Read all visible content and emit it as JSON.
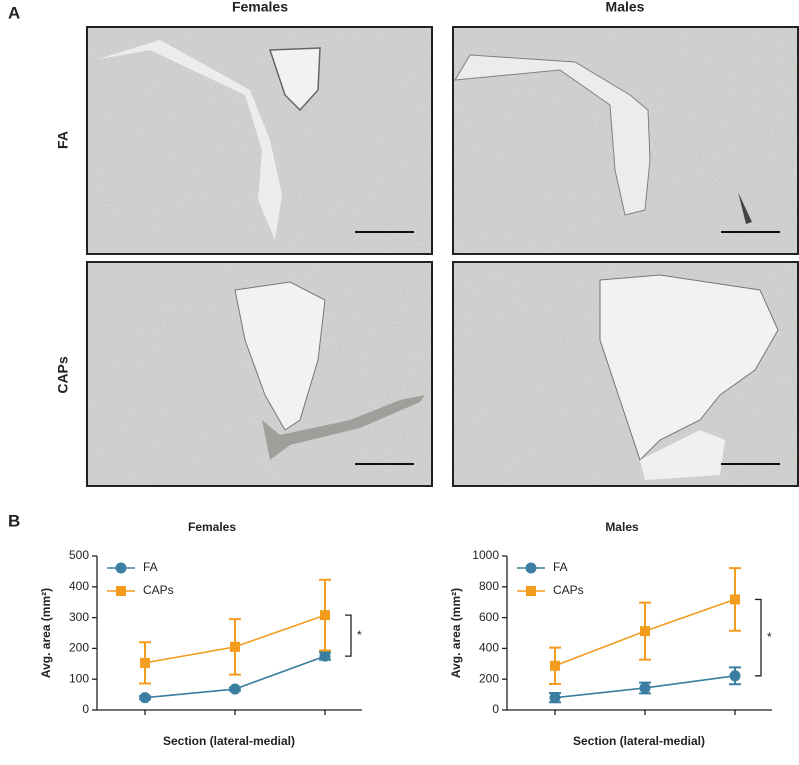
{
  "panel_labels": [
    "A",
    "B"
  ],
  "micrographs": {
    "columns": [
      "Females",
      "Males"
    ],
    "rows": [
      "FA",
      "CAPs"
    ]
  },
  "chart_data": [
    {
      "type": "line",
      "title": "Females",
      "xlabel": "Section (lateral-medial)",
      "ylabel": "Avg. area (mm²)",
      "categories": [
        null,
        null,
        null
      ],
      "series": [
        {
          "name": "FA",
          "color": "#3b7ea1",
          "marker": "circle",
          "values": [
            40,
            68,
            175
          ],
          "errors": [
            5,
            5,
            12
          ]
        },
        {
          "name": "CAPs",
          "color": "#f39c1e",
          "marker": "square",
          "values": [
            153,
            205,
            308
          ],
          "errors": [
            67,
            90,
            115
          ]
        }
      ],
      "ylim": [
        0,
        500
      ],
      "yticks": [
        0,
        100,
        200,
        300,
        400,
        500
      ],
      "legend": "upper left",
      "annotation": "*"
    },
    {
      "type": "line",
      "title": "Males",
      "xlabel": "Section (lateral-medial)",
      "ylabel": "Avg. area (mm²)",
      "categories": [
        null,
        null,
        null
      ],
      "series": [
        {
          "name": "FA",
          "color": "#3b7ea1",
          "marker": "circle",
          "values": [
            80,
            143,
            222
          ],
          "errors": [
            30,
            35,
            55
          ]
        },
        {
          "name": "CAPs",
          "color": "#f39c1e",
          "marker": "square",
          "values": [
            287,
            512,
            718
          ],
          "errors": [
            118,
            185,
            203
          ]
        }
      ],
      "ylim": [
        0,
        1000
      ],
      "yticks": [
        0,
        200,
        400,
        600,
        800,
        1000
      ],
      "legend": "upper left",
      "annotation": "*"
    }
  ]
}
